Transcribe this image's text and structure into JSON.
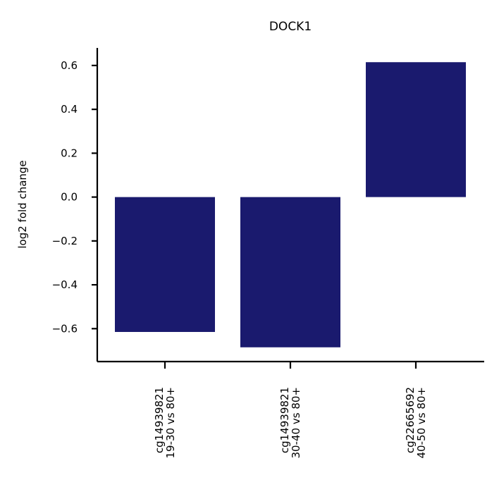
{
  "chart_data": {
    "type": "bar",
    "title": "DOCK1",
    "xlabel": "",
    "ylabel": "log2 fold change",
    "categories": [
      [
        "cg14939821",
        "19-30 vs 80+"
      ],
      [
        "cg14939821",
        "30-40 vs 80+"
      ],
      [
        "cg22665692",
        "40-50 vs 80+"
      ]
    ],
    "values": [
      -0.615,
      -0.685,
      0.615
    ],
    "ylim": [
      -0.75,
      0.68
    ],
    "yticks": [
      0.6,
      0.4,
      0.2,
      0.0,
      -0.2,
      -0.4,
      -0.6
    ],
    "ytick_labels": [
      "0.6",
      "0.4",
      "0.2",
      "0.0",
      "−0.2",
      "−0.4",
      "−0.6"
    ],
    "bar_color": "#1a1a6e",
    "grid": false,
    "legend": "none"
  }
}
